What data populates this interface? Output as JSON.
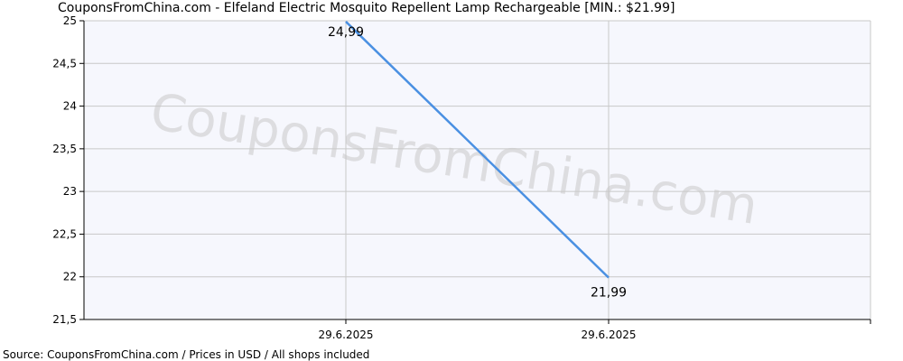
{
  "header": {
    "title": "CouponsFromChina.com - Elfeland Electric Mosquito Repellent Lamp Rechargeable [MIN.: $21.99]"
  },
  "footer": {
    "source": "Source: CouponsFromChina.com / Prices in USD / All shops included"
  },
  "watermark": "CouponsFromChina.com",
  "colors": {
    "line": "#4a90e2",
    "plot_bg": "#f6f7fd",
    "grid": "#c8c8c8",
    "axis": "#000000"
  },
  "chart_data": {
    "type": "line",
    "title": "CouponsFromChina.com - Elfeland Electric Mosquito Repellent Lamp Rechargeable [MIN.: $21.99]",
    "xlabel": "",
    "ylabel": "",
    "ylim": [
      21.5,
      25
    ],
    "yticks": [
      21.5,
      22,
      22.5,
      23,
      23.5,
      24,
      24.5,
      25
    ],
    "ytick_labels": [
      "21,5",
      "22",
      "22,5",
      "23",
      "23,5",
      "24",
      "24,5",
      "25"
    ],
    "xtick_labels": [
      "29.6.2025",
      "29.6.2025"
    ],
    "grid": true,
    "series": [
      {
        "points": [
          {
            "x": "29.6.2025",
            "y": 24.99,
            "label": "24,99"
          },
          {
            "x": "29.6.2025",
            "y": 21.99,
            "label": "21,99"
          }
        ]
      }
    ]
  }
}
